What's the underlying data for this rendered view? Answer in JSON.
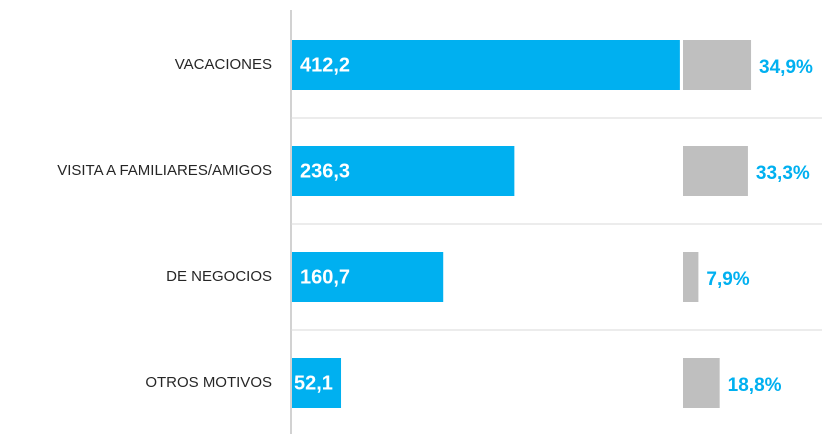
{
  "chart_data": {
    "type": "bar",
    "categories": [
      "VACACIONES",
      "VISITA A FAMILIARES/AMIGOS",
      "DE NEGOCIOS",
      "OTROS MOTIVOS"
    ],
    "series": [
      {
        "color": "#00b0f0",
        "values": [
          412.2,
          236.3,
          160.7,
          52.1
        ],
        "value_labels": [
          "412,2",
          "236,3",
          "160,7",
          "52,1"
        ]
      },
      {
        "color": "#bfbfbf",
        "label_color": "#00b0f0",
        "values": [
          34.9,
          33.3,
          7.9,
          18.8
        ],
        "value_labels": [
          "34,9%",
          "33,3%",
          "7,9%",
          "18,8%"
        ]
      }
    ]
  }
}
